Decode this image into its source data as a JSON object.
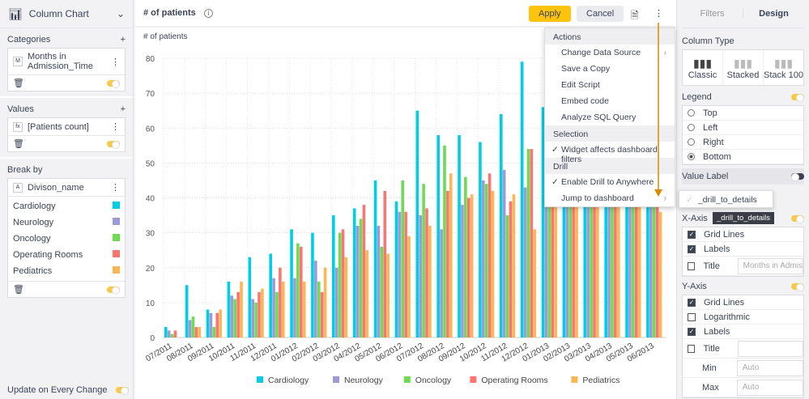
{
  "left": {
    "widget_type": "Column Chart",
    "categories": {
      "title": "Categories",
      "field": "Months in Admission_Time",
      "badge": "M"
    },
    "values": {
      "title": "Values",
      "field": "[Patients count]",
      "badge": "fx"
    },
    "break_by": {
      "title": "Break by",
      "field": "Divison_name",
      "badge": "A",
      "members": [
        {
          "name": "Cardiology",
          "color": "#00cee6"
        },
        {
          "name": "Neurology",
          "color": "#9b9bd7"
        },
        {
          "name": "Oncology",
          "color": "#6eda55"
        },
        {
          "name": "Operating Rooms",
          "color": "#fc7570"
        },
        {
          "name": "Pediatrics",
          "color": "#fbb755"
        }
      ]
    },
    "update_label": "Update on Every Change"
  },
  "topbar": {
    "title": "# of patients",
    "apply": "Apply",
    "cancel": "Cancel"
  },
  "menu": {
    "sections": [
      {
        "header": "Actions",
        "items": [
          {
            "label": "Change Data Source",
            "submenu": true
          },
          {
            "label": "Save a Copy"
          },
          {
            "label": "Edit Script"
          },
          {
            "label": "Embed code"
          },
          {
            "label": "Analyze SQL Query"
          }
        ]
      },
      {
        "header": "Selection",
        "items": [
          {
            "label": "Widget affects dashboard filters",
            "checked": true
          }
        ]
      },
      {
        "header": "Drill",
        "items": [
          {
            "label": "Enable Drill to Anywhere",
            "checked": true
          },
          {
            "label": "Jump to dashboard",
            "submenu": true
          }
        ]
      }
    ],
    "submenu_item": "_drill_to_details",
    "tooltip": "_drill_to_details"
  },
  "right": {
    "tabs": [
      "Filters",
      "Design"
    ],
    "column_type": {
      "title": "Column Type",
      "options": [
        "Classic",
        "Stacked",
        "Stack 100"
      ]
    },
    "legend": {
      "title": "Legend",
      "options": [
        "Top",
        "Left",
        "Right",
        "Bottom"
      ],
      "selected": "Bottom"
    },
    "value_label": "Value Label",
    "x_axis": {
      "title": "X-Axis",
      "grid_lines": "Grid Lines",
      "labels": "Labels",
      "title_label": "Title",
      "title_placeholder": "Months in Admission_Time"
    },
    "y_axis": {
      "title": "Y-Axis",
      "grid_lines": "Grid Lines",
      "logarithmic": "Logarithmic",
      "labels": "Labels",
      "title_label": "Title",
      "min_label": "Min",
      "max_label": "Max",
      "min_placeholder": "Auto",
      "max_placeholder": "Auto"
    }
  },
  "chart_data": {
    "type": "bar",
    "ylabel": "# of patients",
    "ylim": [
      0,
      80
    ],
    "yticks": [
      0,
      10,
      20,
      30,
      40,
      50,
      60,
      70,
      80
    ],
    "grid": true,
    "legend": "bottom",
    "categories": [
      "07/2011",
      "08/2011",
      "09/2011",
      "10/2011",
      "11/2011",
      "12/2011",
      "01/2012",
      "02/2012",
      "03/2012",
      "04/2012",
      "05/2012",
      "06/2012",
      "07/2012",
      "08/2012",
      "09/2012",
      "10/2012",
      "11/2012",
      "12/2012",
      "01/2013",
      "02/2013",
      "03/2013",
      "04/2013",
      "05/2013",
      "06/2013"
    ],
    "series": [
      {
        "name": "Cardiology",
        "color": "#00cee6",
        "values": [
          3,
          15,
          8,
          16,
          23,
          24,
          31,
          30,
          35,
          37,
          45,
          39,
          65,
          58,
          58,
          56,
          64,
          79,
          66,
          62,
          64,
          66,
          68,
          70
        ]
      },
      {
        "name": "Neurology",
        "color": "#9b9bd7",
        "values": [
          2,
          5,
          7,
          12,
          11,
          17,
          17,
          22,
          20,
          32,
          32,
          36,
          35,
          31,
          38,
          45,
          48,
          43,
          48,
          46,
          50,
          52,
          50,
          54
        ]
      },
      {
        "name": "Oncology",
        "color": "#6eda55",
        "values": [
          1,
          6,
          3,
          11,
          10,
          13,
          27,
          16,
          30,
          34,
          26,
          45,
          44,
          55,
          46,
          44,
          35,
          54,
          52,
          50,
          53,
          55,
          52,
          56
        ]
      },
      {
        "name": "Operating Rooms",
        "color": "#fc7570",
        "values": [
          2,
          3,
          7,
          13,
          13,
          20,
          26,
          13,
          31,
          38,
          42,
          36,
          37,
          42,
          40,
          47,
          39,
          54,
          50,
          48,
          51,
          53,
          50,
          52
        ]
      },
      {
        "name": "Pediatrics",
        "color": "#fbb755",
        "values": [
          0,
          3,
          8,
          16,
          14,
          16,
          16,
          20,
          23,
          25,
          24,
          29,
          32,
          47,
          41,
          42,
          41,
          31,
          45,
          44,
          46,
          48,
          47,
          36
        ]
      }
    ]
  }
}
